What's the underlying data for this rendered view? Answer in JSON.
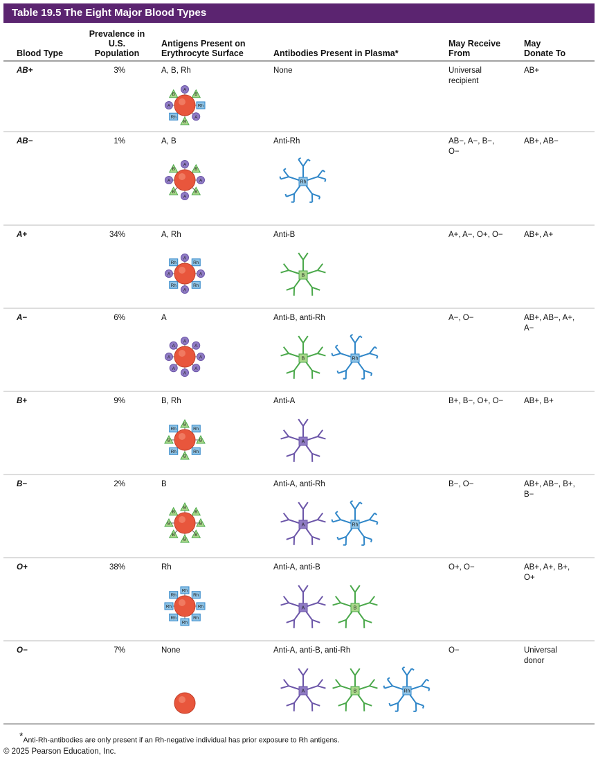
{
  "title": "Table 19.5 The Eight Major Blood Types",
  "table": {
    "columns": [
      "Blood Type",
      "Prevalence in U.S. Population",
      "Antigens Present on Erythrocyte Surface",
      "Antibodies Present in Plasma*",
      "May Receive From",
      "May Donate To"
    ],
    "rows": [
      {
        "blood_type": "AB+",
        "prevalence": "3%",
        "antigens": "A, B, Rh",
        "antigen_markers": [
          "A",
          "B",
          "Rh"
        ],
        "antibodies": "None",
        "antibody_markers": [],
        "receive_from": "Universal recipient",
        "donate_to": "AB+"
      },
      {
        "blood_type": "AB−",
        "prevalence": "1%",
        "antigens": "A, B",
        "antigen_markers": [
          "A",
          "B"
        ],
        "antibodies": "Anti-Rh",
        "antibody_markers": [
          "Rh"
        ],
        "receive_from": "AB−, A−, B−, O−",
        "donate_to": "AB+, AB−"
      },
      {
        "blood_type": "A+",
        "prevalence": "34%",
        "antigens": "A, Rh",
        "antigen_markers": [
          "A",
          "Rh"
        ],
        "antibodies": "Anti-B",
        "antibody_markers": [
          "B"
        ],
        "receive_from": "A+, A−, O+, O−",
        "donate_to": "AB+, A+"
      },
      {
        "blood_type": "A−",
        "prevalence": "6%",
        "antigens": "A",
        "antigen_markers": [
          "A"
        ],
        "antibodies": "Anti-B, anti-Rh",
        "antibody_markers": [
          "B",
          "Rh"
        ],
        "receive_from": "A−, O−",
        "donate_to": "AB+, AB−, A+, A−"
      },
      {
        "blood_type": "B+",
        "prevalence": "9%",
        "antigens": "B, Rh",
        "antigen_markers": [
          "B",
          "Rh"
        ],
        "antibodies": "Anti-A",
        "antibody_markers": [
          "A"
        ],
        "receive_from": "B+, B−, O+, O−",
        "donate_to": "AB+, B+"
      },
      {
        "blood_type": "B−",
        "prevalence": "2%",
        "antigens": "B",
        "antigen_markers": [
          "B"
        ],
        "antibodies": "Anti-A, anti-Rh",
        "antibody_markers": [
          "A",
          "Rh"
        ],
        "receive_from": "B−, O−",
        "donate_to": "AB+, AB−, B+, B−"
      },
      {
        "blood_type": "O+",
        "prevalence": "38%",
        "antigens": "Rh",
        "antigen_markers": [
          "Rh"
        ],
        "antibodies": "Anti-A, anti-B",
        "antibody_markers": [
          "A",
          "B"
        ],
        "receive_from": "O+, O−",
        "donate_to": "AB+, A+, B+, O+"
      },
      {
        "blood_type": "O−",
        "prevalence": "7%",
        "antigens": "None",
        "antigen_markers": [],
        "antibodies": "Anti-A, anti-B, anti-Rh",
        "antibody_markers": [
          "A",
          "B",
          "Rh"
        ],
        "receive_from": "O−",
        "donate_to": "Universal donor"
      }
    ]
  },
  "footnote": {
    "marker": "*",
    "text": "Anti-Rh-antibodies are only present if an Rh-negative individual has prior exposure to Rh antigens."
  },
  "copyright": "© 2025 Pearson Education, Inc."
}
